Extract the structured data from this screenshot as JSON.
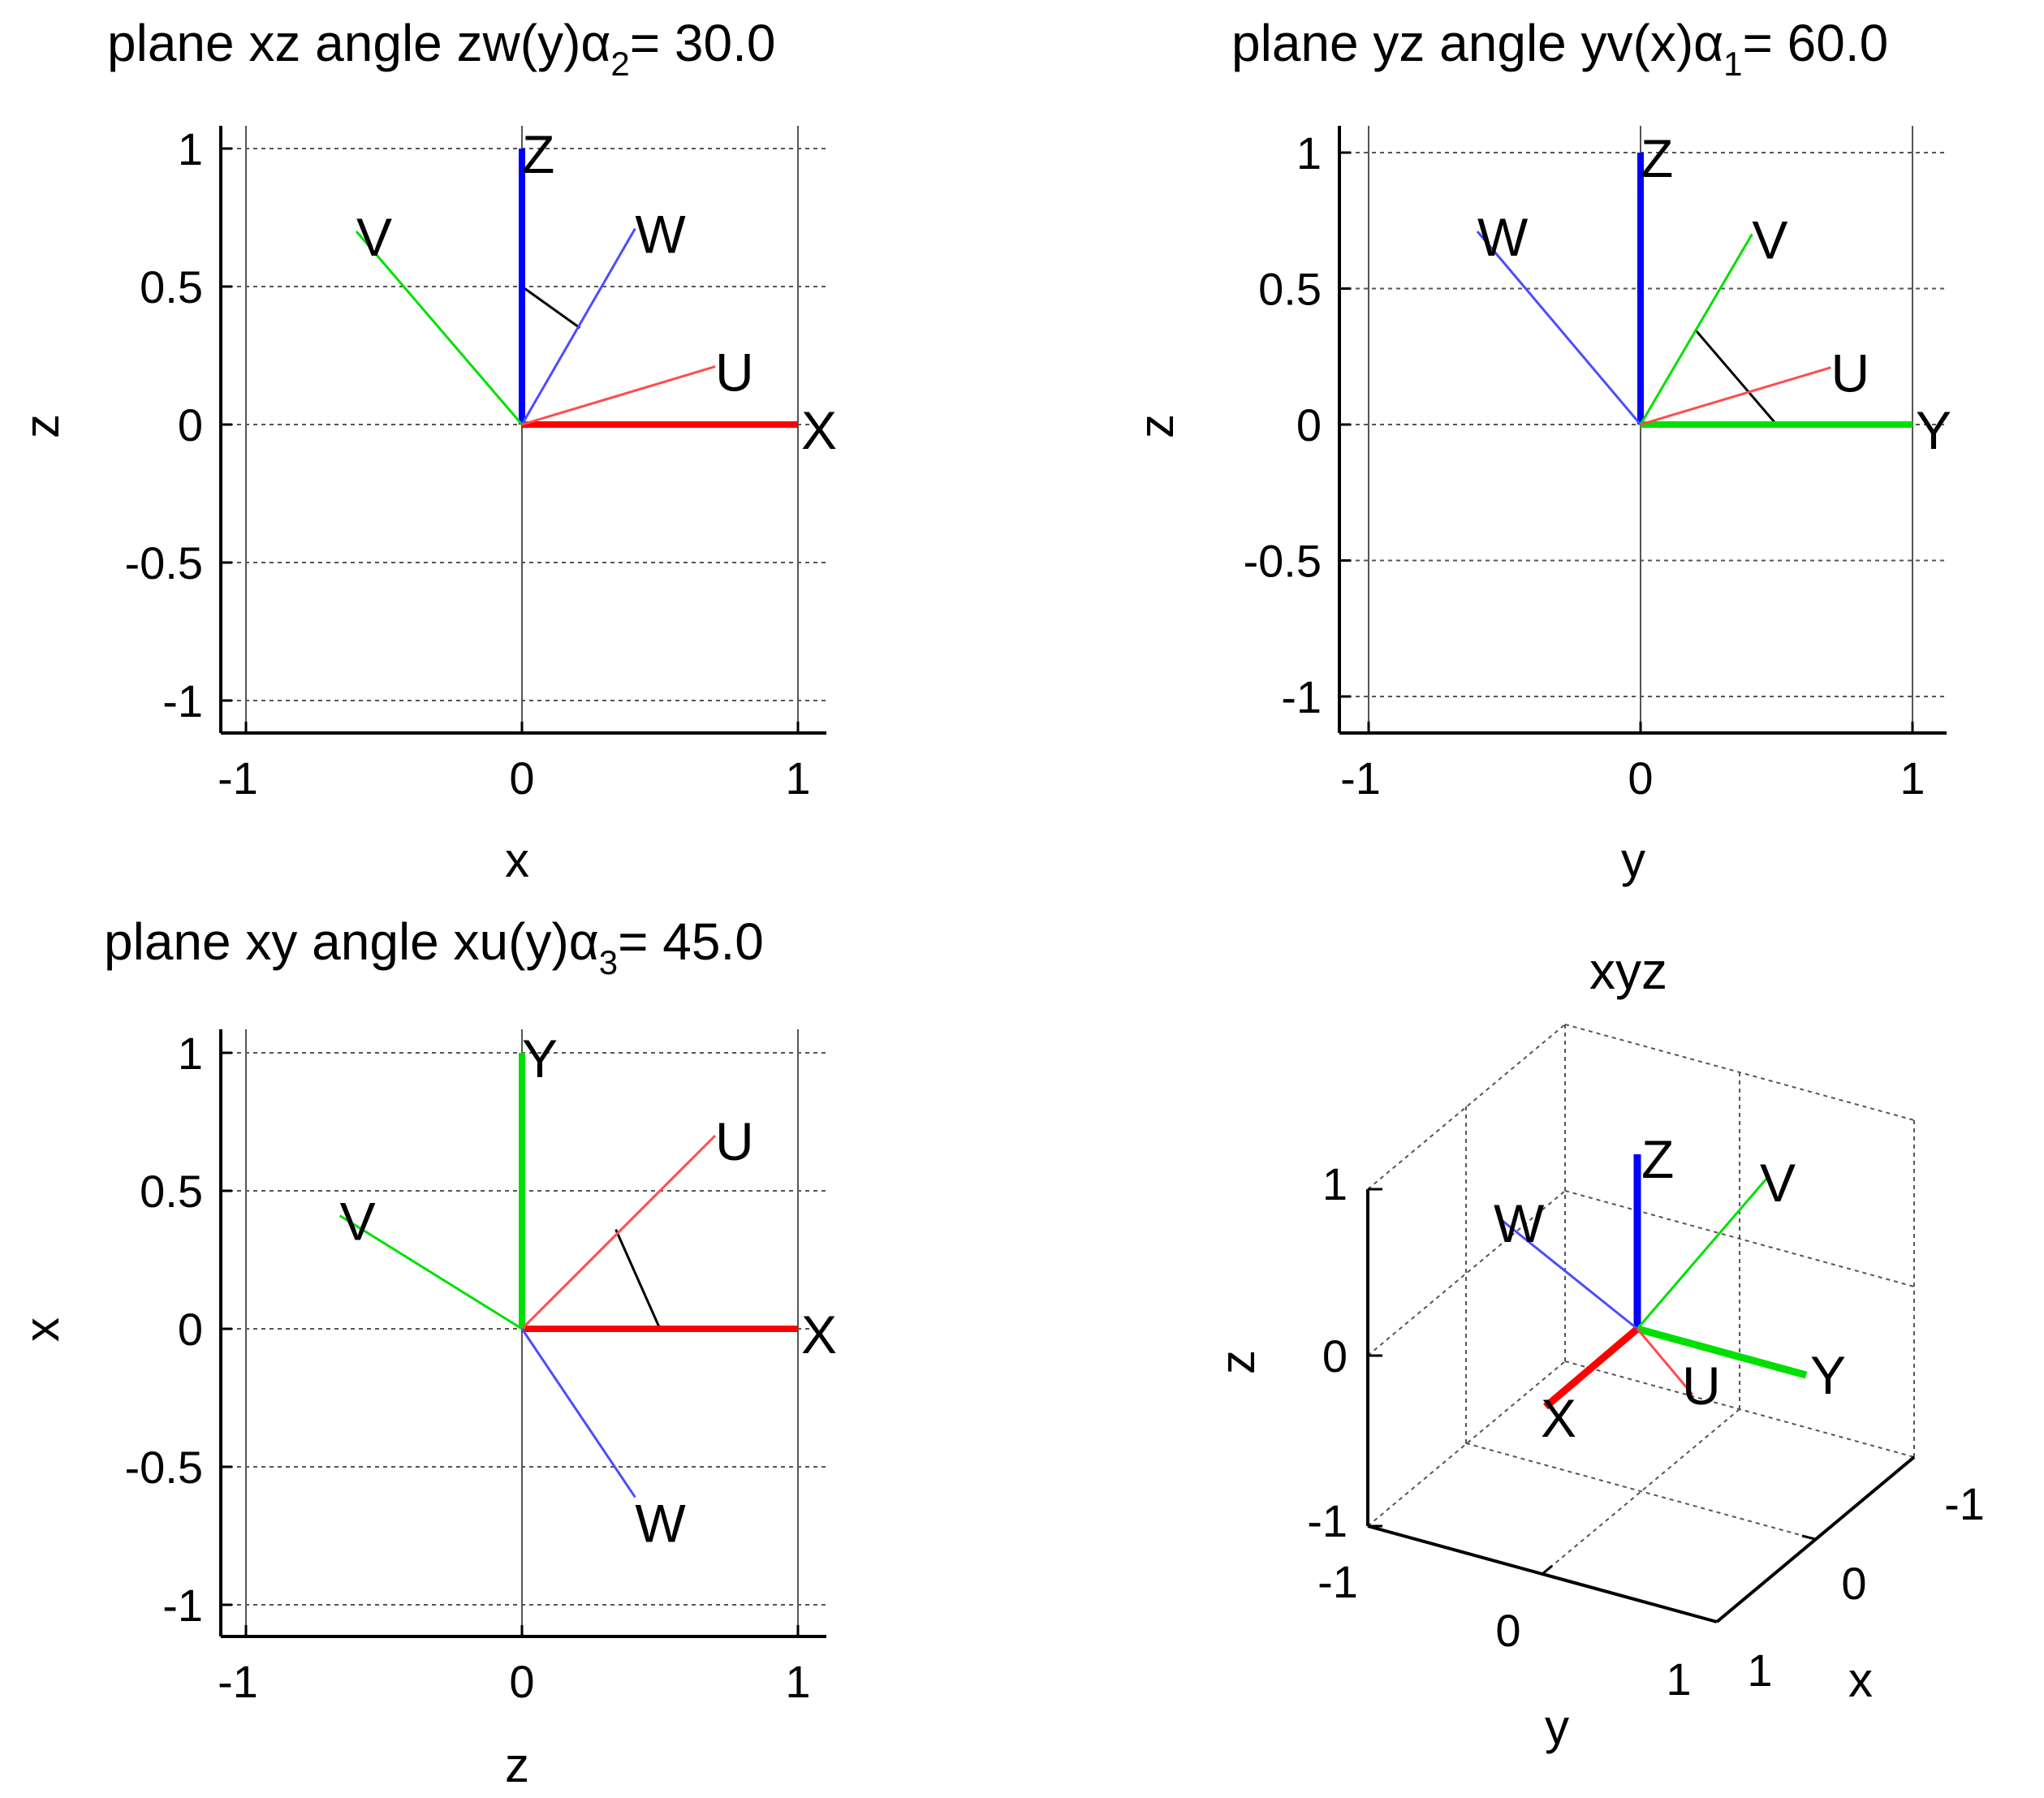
{
  "panels": [
    {
      "id": "xz",
      "title": {
        "prefix": "plane xz  angle zw(y)",
        "greek": "α",
        "sub": "2",
        "suffix": "=  30.0"
      },
      "xlabel": "x",
      "ylabel": "z",
      "xticks": [
        "-1",
        "0",
        "1"
      ],
      "yticks": [
        "-1",
        "-0.5",
        "0",
        "0.5",
        "1"
      ],
      "vectors": [
        {
          "name": "X",
          "label": "X",
          "x": 1.0,
          "y": 0.0,
          "color": "#ff0000",
          "bold": true
        },
        {
          "name": "Z",
          "label": "Z",
          "x": 0.0,
          "y": 1.0,
          "color": "#0000ff",
          "bold": true
        },
        {
          "name": "V",
          "label": "V",
          "x": -0.6,
          "y": 0.7,
          "color": "#00e000",
          "bold": false
        },
        {
          "name": "W",
          "label": "W",
          "x": 0.41,
          "y": 0.71,
          "color": "#4c4cff",
          "bold": false
        },
        {
          "name": "U",
          "label": "U",
          "x": 0.7,
          "y": 0.21,
          "color": "#ff4c4c",
          "bold": false
        }
      ],
      "arc": {
        "from": [
          0.0,
          0.5
        ],
        "to": [
          0.21,
          0.35
        ]
      }
    },
    {
      "id": "yz",
      "title": {
        "prefix": "plane yz  angle yv(x)",
        "greek": "α",
        "sub": "1",
        "suffix": "=  60.0"
      },
      "xlabel": "y",
      "ylabel": "z",
      "xticks": [
        "-1",
        "0",
        "1"
      ],
      "yticks": [
        "-1",
        "-0.5",
        "0",
        "0.5",
        "1"
      ],
      "vectors": [
        {
          "name": "Y",
          "label": "Y",
          "x": 1.0,
          "y": 0.0,
          "color": "#00e000",
          "bold": true
        },
        {
          "name": "Z",
          "label": "Z",
          "x": 0.0,
          "y": 1.0,
          "color": "#0000ff",
          "bold": true
        },
        {
          "name": "W",
          "label": "W",
          "x": -0.6,
          "y": 0.71,
          "color": "#4c4cff",
          "bold": false
        },
        {
          "name": "V",
          "label": "V",
          "x": 0.41,
          "y": 0.7,
          "color": "#00e000",
          "bold": false
        },
        {
          "name": "U",
          "label": "U",
          "x": 0.7,
          "y": 0.21,
          "color": "#ff4c4c",
          "bold": false
        }
      ],
      "arc": {
        "from": [
          0.5,
          0.0
        ],
        "to": [
          0.2,
          0.35
        ]
      }
    },
    {
      "id": "xy",
      "title": {
        "prefix": "plane xy   angle xu(y)",
        "greek": "α",
        "sub": "3",
        "suffix": "=  45.0"
      },
      "xlabel": "z",
      "ylabel": "x",
      "xticks": [
        "-1",
        "0",
        "1"
      ],
      "yticks": [
        "-1",
        "-0.5",
        "0",
        "0.5",
        "1"
      ],
      "vectors": [
        {
          "name": "X",
          "label": "X",
          "x": 1.0,
          "y": 0.0,
          "color": "#ff0000",
          "bold": true
        },
        {
          "name": "Y",
          "label": "Y",
          "x": 0.0,
          "y": 1.0,
          "color": "#00e000",
          "bold": true
        },
        {
          "name": "U",
          "label": "U",
          "x": 0.7,
          "y": 0.7,
          "color": "#ff4c4c",
          "bold": false
        },
        {
          "name": "V",
          "label": "V",
          "x": -0.66,
          "y": 0.41,
          "color": "#00e000",
          "bold": false
        },
        {
          "name": "W",
          "label": "W",
          "x": 0.41,
          "y": -0.61,
          "color": "#4c4cff",
          "bold": false
        }
      ],
      "arc": {
        "from": [
          0.5,
          0.0
        ],
        "to": [
          0.34,
          0.36
        ]
      }
    }
  ],
  "xyz": {
    "title": "xyz",
    "xlabel": "x",
    "ylabel": "y",
    "zlabel": "z",
    "zticks": [
      "1",
      "0",
      "-1"
    ],
    "yticks": [
      "-1",
      "0",
      "1"
    ],
    "xticks": [
      "-1",
      "0",
      "1"
    ],
    "vectors": [
      {
        "name": "Z",
        "label": "Z",
        "color": "#0000ff",
        "bold": true
      },
      {
        "name": "Y",
        "label": "Y",
        "color": "#00e000",
        "bold": true
      },
      {
        "name": "X",
        "label": "X",
        "color": "#ff0000",
        "bold": true
      },
      {
        "name": "V",
        "label": "V",
        "color": "#00e000",
        "bold": false
      },
      {
        "name": "W",
        "label": "W",
        "color": "#4c4cff",
        "bold": false
      },
      {
        "name": "U",
        "label": "U",
        "color": "#ff4c4c",
        "bold": false
      }
    ]
  },
  "chart_data": [
    {
      "type": "line",
      "title": "plane xz  angle zw(y)α2=  30.0",
      "xlabel": "x",
      "ylabel": "z",
      "xlim": [
        -1,
        1
      ],
      "ylim": [
        -1,
        1
      ],
      "grid": true,
      "series": [
        {
          "name": "X",
          "x": [
            0,
            1.0
          ],
          "y": [
            0,
            0.0
          ]
        },
        {
          "name": "Z",
          "x": [
            0,
            0.0
          ],
          "y": [
            0,
            1.0
          ]
        },
        {
          "name": "V",
          "x": [
            0,
            -0.6
          ],
          "y": [
            0,
            0.7
          ]
        },
        {
          "name": "W",
          "x": [
            0,
            0.41
          ],
          "y": [
            0,
            0.71
          ]
        },
        {
          "name": "U",
          "x": [
            0,
            0.7
          ],
          "y": [
            0,
            0.21
          ]
        }
      ]
    },
    {
      "type": "line",
      "title": "plane yz  angle yv(x)α1=  60.0",
      "xlabel": "y",
      "ylabel": "z",
      "xlim": [
        -1,
        1
      ],
      "ylim": [
        -1,
        1
      ],
      "grid": true,
      "series": [
        {
          "name": "Y",
          "x": [
            0,
            1.0
          ],
          "y": [
            0,
            0.0
          ]
        },
        {
          "name": "Z",
          "x": [
            0,
            0.0
          ],
          "y": [
            0,
            1.0
          ]
        },
        {
          "name": "W",
          "x": [
            0,
            -0.6
          ],
          "y": [
            0,
            0.71
          ]
        },
        {
          "name": "V",
          "x": [
            0,
            0.41
          ],
          "y": [
            0,
            0.7
          ]
        },
        {
          "name": "U",
          "x": [
            0,
            0.7
          ],
          "y": [
            0,
            0.21
          ]
        }
      ]
    },
    {
      "type": "line",
      "title": "plane xy   angle xu(y)α3=  45.0",
      "xlabel": "z",
      "ylabel": "x",
      "xlim": [
        -1,
        1
      ],
      "ylim": [
        -1,
        1
      ],
      "grid": true,
      "series": [
        {
          "name": "X",
          "x": [
            0,
            1.0
          ],
          "y": [
            0,
            0.0
          ]
        },
        {
          "name": "Y",
          "x": [
            0,
            0.0
          ],
          "y": [
            0,
            1.0
          ]
        },
        {
          "name": "U",
          "x": [
            0,
            0.7
          ],
          "y": [
            0,
            0.7
          ]
        },
        {
          "name": "V",
          "x": [
            0,
            -0.66
          ],
          "y": [
            0,
            0.41
          ]
        },
        {
          "name": "W",
          "x": [
            0,
            0.41
          ],
          "y": [
            0,
            -0.61
          ]
        }
      ]
    },
    {
      "type": "line",
      "title": "xyz",
      "xlabel": "x",
      "ylabel": "y",
      "zlabel": "z",
      "xlim": [
        -1,
        1
      ],
      "ylim": [
        -1,
        1
      ],
      "zlim": [
        -1,
        1
      ],
      "grid": true
    }
  ]
}
